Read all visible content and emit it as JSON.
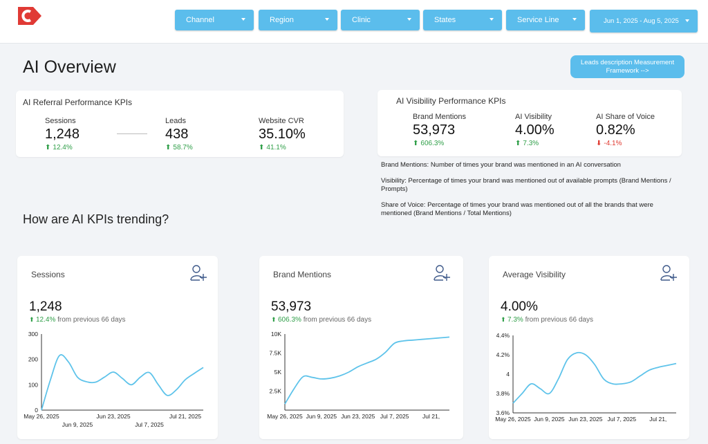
{
  "header": {
    "filters": [
      "Channel",
      "Region",
      "Clinic",
      "States",
      "Service Line"
    ],
    "date_range": "Jun 1, 2025 - Aug 5, 2025"
  },
  "page_title": "AI Overview",
  "framework_button": "Leads description Measurement Framework -->",
  "referral": {
    "title": "AI Referral Performance KPIs",
    "kpis": [
      {
        "label": "Sessions",
        "value": "1,248",
        "change": "12.4%"
      },
      {
        "label": "Leads",
        "value": "438",
        "change": "58.7%"
      },
      {
        "label": "Website CVR",
        "value": "35.10%",
        "change": "41.1%"
      }
    ]
  },
  "visibility": {
    "title": "AI Visibility Performance KPIs",
    "kpis": [
      {
        "label": "Brand Mentions",
        "value": "53,973",
        "change": "606.3%"
      },
      {
        "label": "AI Visibility",
        "value": "4.00%",
        "change": "7.3%"
      },
      {
        "label": "AI Share of Voice",
        "value": "0.82%",
        "change": "-4.1%"
      }
    ]
  },
  "definitions": [
    "Brand Mentions: Number of times your brand was mentioned in an AI conversation",
    "Visibility: Percentage of times your brand was mentioned out of available prompts (Brand Mentions / Prompts)",
    "Share of Voice: Percentage of times your brand was mentioned out of all the brands that were mentioned (Brand Mentions / Total Mentions)"
  ],
  "trend_title": "How are AI KPIs trending?",
  "chart_data": [
    {
      "type": "line",
      "title": "Sessions",
      "value": "1,248",
      "change": "12.4%",
      "change_note": "from previous 66 days",
      "color": "#5ec3ea",
      "categories": [
        "May 26, 2025",
        null,
        null,
        null,
        "Jun 9, 2025",
        null,
        null,
        null,
        "Jun 23, 2025",
        null,
        null,
        null,
        "Jul 7, 2025",
        null,
        null,
        null,
        "Jul 21, 2025",
        null,
        null
      ],
      "values": [
        0,
        120,
        215,
        190,
        130,
        112,
        110,
        130,
        150,
        125,
        100,
        130,
        148,
        100,
        58,
        80,
        120,
        145,
        168
      ],
      "ylim": [
        0,
        300
      ],
      "yticks": [
        0,
        100,
        200,
        300
      ]
    },
    {
      "type": "line",
      "title": "Brand Mentions",
      "value": "53,973",
      "change": "606.3%",
      "change_note": "from previous 66 days",
      "color": "#5ec3ea",
      "categories": [
        "May 26, 2025",
        null,
        null,
        null,
        "Jun 9, 2025",
        null,
        null,
        null,
        "Jun 23, 2025",
        null,
        null,
        null,
        "Jul 7, 2025",
        null,
        null,
        null,
        "Jul 21,",
        null,
        null
      ],
      "values": [
        800,
        2800,
        4400,
        4300,
        4100,
        4200,
        4500,
        5000,
        5700,
        6200,
        6700,
        7600,
        8800,
        9100,
        9200,
        9300,
        9400,
        9500,
        9600
      ],
      "ylim": [
        0,
        10000
      ],
      "yticks": [
        {
          "value": 2500,
          "label": "2.5K"
        },
        {
          "value": 5000,
          "label": "5K"
        },
        {
          "value": 7500,
          "label": "7.5K"
        },
        {
          "value": 10000,
          "label": "10K"
        }
      ]
    },
    {
      "type": "line",
      "title": "Average Visibility",
      "value": "4.00%",
      "change": "7.3%",
      "change_note": "from previous 66 days",
      "color": "#5ec3ea",
      "categories": [
        "May 26, 2025",
        null,
        null,
        null,
        "Jun 9, 2025",
        null,
        null,
        null,
        "Jun 23, 2025",
        null,
        null,
        null,
        "Jul 7, 2025",
        null,
        null,
        null,
        "Jul 21,",
        null,
        null
      ],
      "values": [
        3.7,
        3.8,
        3.9,
        3.85,
        3.8,
        3.95,
        4.15,
        4.22,
        4.2,
        4.1,
        3.95,
        3.9,
        3.9,
        3.92,
        3.98,
        4.04,
        4.07,
        4.09,
        4.11
      ],
      "ylim": [
        3.6,
        4.4
      ],
      "yticks": [
        {
          "value": 3.6,
          "label": "3.6%"
        },
        {
          "value": 3.8,
          "label": "3.8%"
        },
        4,
        {
          "value": 4.2,
          "label": "4.2%"
        },
        {
          "value": 4.4,
          "label": "4.4%"
        }
      ]
    }
  ]
}
